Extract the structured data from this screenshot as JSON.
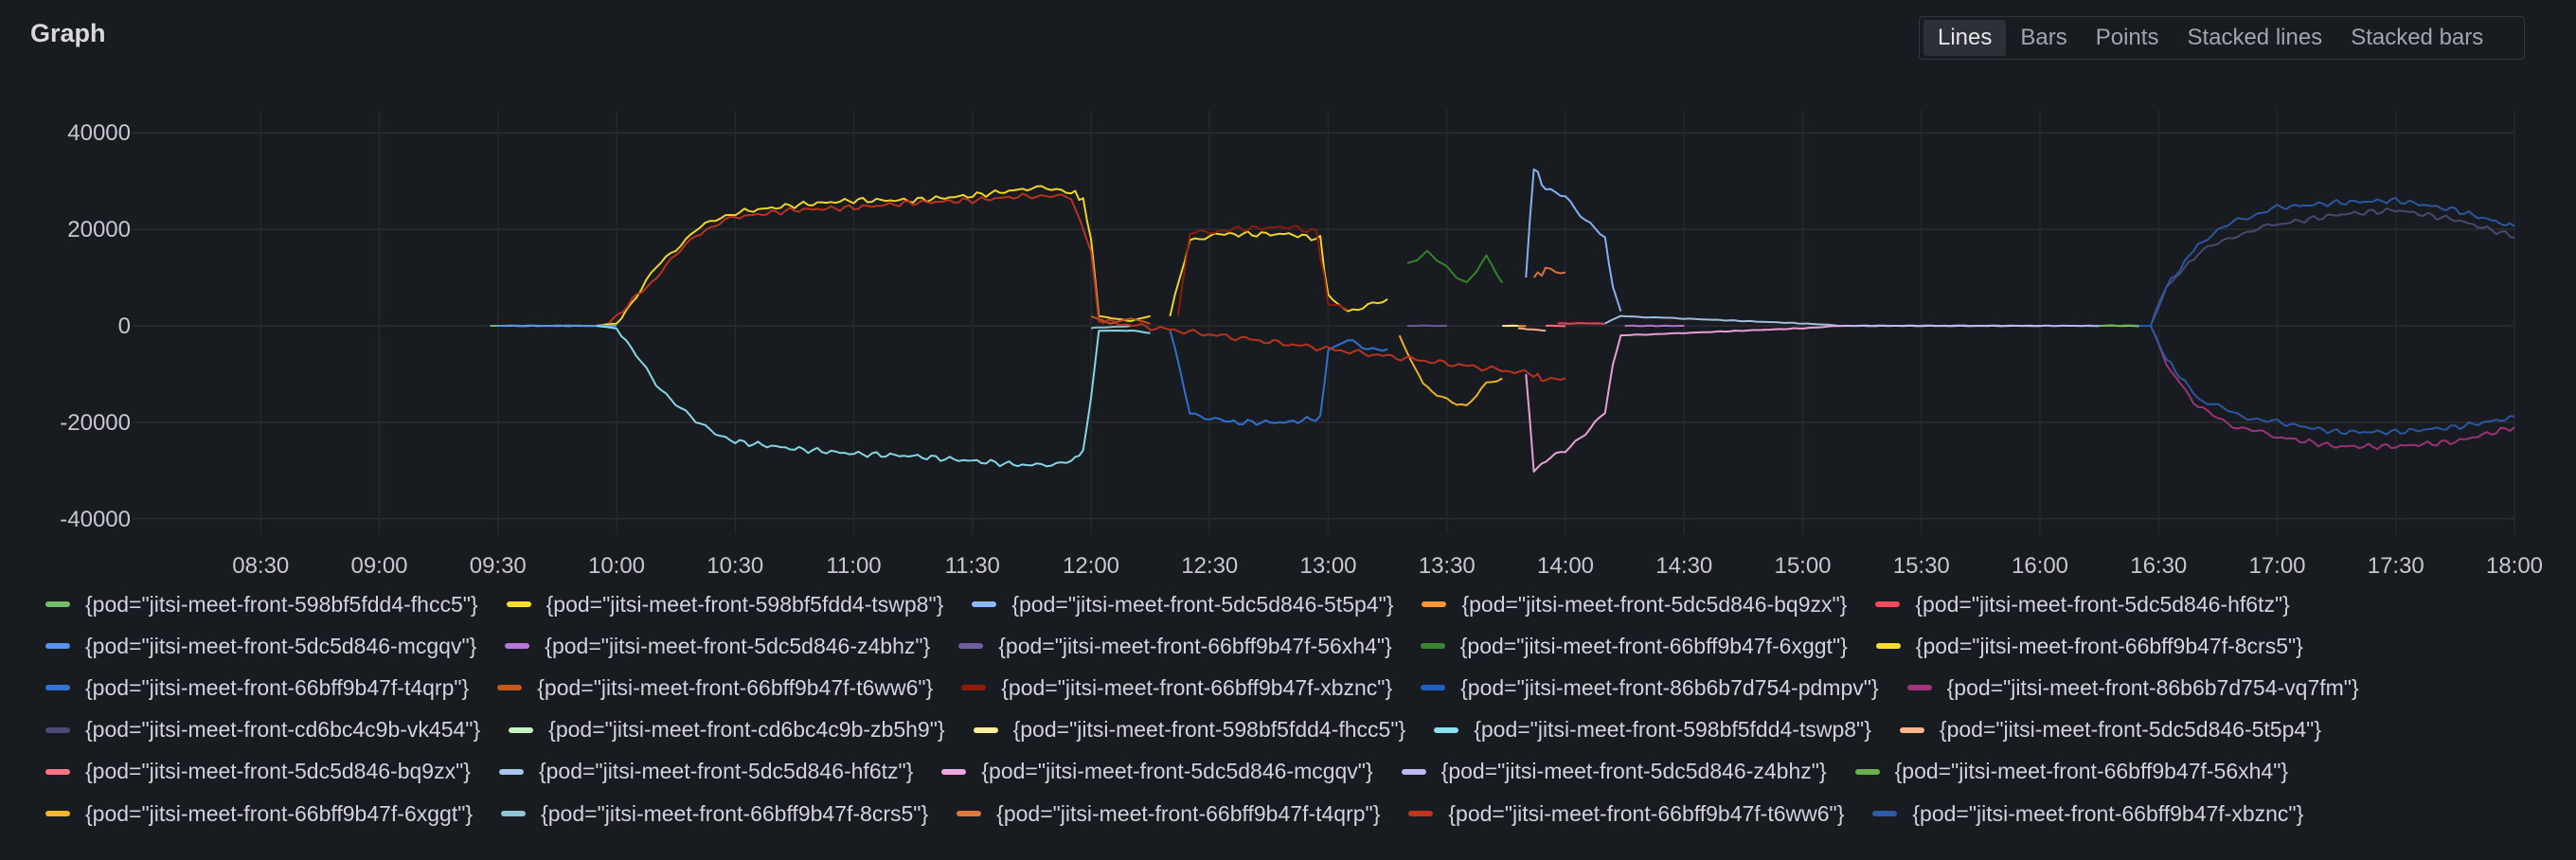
{
  "panel": {
    "title": "Graph",
    "viz_options": [
      {
        "label": "Lines",
        "active": true
      },
      {
        "label": "Bars",
        "active": false
      },
      {
        "label": "Points",
        "active": false
      },
      {
        "label": "Stacked lines",
        "active": false
      },
      {
        "label": "Stacked bars",
        "active": false
      }
    ]
  },
  "chart_data": {
    "type": "line",
    "title": "",
    "xlabel": "",
    "ylabel": "",
    "x_ticks": [
      "08:30",
      "09:00",
      "09:30",
      "10:00",
      "10:30",
      "11:00",
      "11:30",
      "12:00",
      "12:30",
      "13:00",
      "13:30",
      "14:00",
      "14:30",
      "15:00",
      "15:30",
      "16:00",
      "16:30",
      "17:00",
      "17:30",
      "18:00"
    ],
    "y_ticks": [
      40000,
      20000,
      0,
      -20000,
      -40000
    ],
    "y_tick_labels": [
      "40000",
      "20000",
      "0",
      "-20000",
      "-40000"
    ],
    "xlim": [
      "08:00",
      "18:00"
    ],
    "ylim": [
      -42000,
      42000
    ],
    "grid": true,
    "legend_position": "bottom",
    "series": [
      {
        "name": "{pod=\"jitsi-meet-front-598bf5fdd4-fhcc5\"}",
        "color": "#73bf69",
        "points": [
          [
            "09:28",
            0
          ],
          [
            "10:00",
            0
          ]
        ]
      },
      {
        "name": "{pod=\"jitsi-meet-front-598bf5fdd4-tswp8\"}",
        "color": "#fade2a",
        "points": [
          [
            "09:55",
            0
          ],
          [
            "10:00",
            500
          ],
          [
            "10:10",
            12000
          ],
          [
            "10:20",
            20000
          ],
          [
            "10:30",
            23500
          ],
          [
            "10:45",
            25000
          ],
          [
            "11:00",
            26000
          ],
          [
            "11:15",
            26000
          ],
          [
            "11:30",
            27000
          ],
          [
            "11:45",
            28500
          ],
          [
            "11:55",
            28000
          ],
          [
            "11:58",
            26000
          ],
          [
            "12:00",
            18000
          ],
          [
            "12:02",
            2000
          ],
          [
            "12:10",
            1000
          ],
          [
            "12:15",
            2000
          ]
        ]
      },
      {
        "name": "{pod=\"jitsi-meet-front-5dc5d846-5t5p4\"}",
        "color": "#8ab8ff",
        "points": [
          [
            "13:50",
            10000
          ],
          [
            "13:52",
            33000
          ],
          [
            "13:55",
            28000
          ],
          [
            "14:00",
            27000
          ],
          [
            "14:05",
            22000
          ],
          [
            "14:10",
            18000
          ],
          [
            "14:12",
            8000
          ],
          [
            "14:14",
            3000
          ]
        ]
      },
      {
        "name": "{pod=\"jitsi-meet-front-5dc5d846-bq9zx\"}",
        "color": "#ff9830",
        "points": [
          [
            "13:45",
            0
          ],
          [
            "13:50",
            0
          ]
        ]
      },
      {
        "name": "{pod=\"jitsi-meet-front-5dc5d846-hf6tz\"}",
        "color": "#f2495c",
        "points": [
          [
            "13:58",
            500
          ],
          [
            "14:10",
            500
          ]
        ]
      },
      {
        "name": "{pod=\"jitsi-meet-front-5dc5d846-mcgqv\"}",
        "color": "#5794f2",
        "points": [
          [
            "09:30",
            0
          ],
          [
            "10:00",
            0
          ]
        ]
      },
      {
        "name": "{pod=\"jitsi-meet-front-5dc5d846-z4bhz\"}",
        "color": "#b877d9",
        "points": [
          [
            "14:15",
            0
          ],
          [
            "14:30",
            0
          ]
        ]
      },
      {
        "name": "{pod=\"jitsi-meet-front-66bff9b47f-56xh4\"}",
        "color": "#705da0",
        "points": [
          [
            "13:20",
            0
          ],
          [
            "13:30",
            0
          ]
        ]
      },
      {
        "name": "{pod=\"jitsi-meet-front-66bff9b47f-6xggt\"}",
        "color": "#37872d",
        "points": [
          [
            "13:20",
            13000
          ],
          [
            "13:25",
            15000
          ],
          [
            "13:30",
            12000
          ],
          [
            "13:35",
            9000
          ],
          [
            "13:40",
            14000
          ],
          [
            "13:44",
            9000
          ]
        ]
      },
      {
        "name": "{pod=\"jitsi-meet-front-66bff9b47f-8crs5\"}",
        "color": "#fade2a",
        "points": [
          [
            "12:20",
            2000
          ],
          [
            "12:25",
            18000
          ],
          [
            "12:35",
            19000
          ],
          [
            "12:50",
            19000
          ],
          [
            "12:58",
            18000
          ],
          [
            "13:00",
            6000
          ],
          [
            "13:05",
            3000
          ],
          [
            "13:10",
            4500
          ],
          [
            "13:15",
            5000
          ]
        ]
      },
      {
        "name": "{pod=\"jitsi-meet-front-66bff9b47f-t4qrp\"}",
        "color": "#3274d9",
        "points": [
          [
            "12:20",
            -1000
          ],
          [
            "12:25",
            -18000
          ],
          [
            "12:35",
            -20000
          ],
          [
            "12:50",
            -20000
          ],
          [
            "12:58",
            -19000
          ],
          [
            "13:00",
            -5000
          ],
          [
            "13:05",
            -3000
          ],
          [
            "13:10",
            -4500
          ],
          [
            "13:15",
            -5000
          ]
        ]
      },
      {
        "name": "{pod=\"jitsi-meet-front-66bff9b47f-t6ww6\"}",
        "color": "#c4581d",
        "points": [
          [
            "12:00",
            2000
          ],
          [
            "12:05",
            500
          ],
          [
            "12:10",
            1500
          ],
          [
            "12:15",
            500
          ]
        ]
      },
      {
        "name": "{pod=\"jitsi-meet-front-66bff9b47f-xbznc\"}",
        "color": "#8f1c0a",
        "points": [
          [
            "12:22",
            2000
          ],
          [
            "12:25",
            19000
          ],
          [
            "12:35",
            20000
          ],
          [
            "12:50",
            20500
          ],
          [
            "12:57",
            19500
          ],
          [
            "13:00",
            5000
          ],
          [
            "13:05",
            3500
          ]
        ]
      },
      {
        "name": "{pod=\"jitsi-meet-front-86b6b7d754-pdmpv\"}",
        "color": "#1f60c4",
        "points": [
          [
            "16:00",
            0
          ],
          [
            "16:28",
            0
          ]
        ]
      },
      {
        "name": "{pod=\"jitsi-meet-front-86b6b7d754-vq7fm\"}",
        "color": "#a0357a",
        "points": [
          [
            "16:28",
            0
          ],
          [
            "16:32",
            -8000
          ],
          [
            "16:40",
            -17000
          ],
          [
            "16:50",
            -21000
          ],
          [
            "17:00",
            -23000
          ],
          [
            "17:15",
            -25000
          ],
          [
            "17:30",
            -25000
          ],
          [
            "17:45",
            -24000
          ],
          [
            "18:00",
            -21000
          ]
        ]
      },
      {
        "name": "{pod=\"jitsi-meet-front-cd6bc4c9b-vk454\"}",
        "color": "#4e4a77",
        "points": [
          [
            "16:28",
            0
          ],
          [
            "16:32",
            8000
          ],
          [
            "16:40",
            15000
          ],
          [
            "16:50",
            19000
          ],
          [
            "17:00",
            21000
          ],
          [
            "17:15",
            23000
          ],
          [
            "17:30",
            24000
          ],
          [
            "17:45",
            22000
          ],
          [
            "18:00",
            18500
          ]
        ]
      },
      {
        "name": "{pod=\"jitsi-meet-front-cd6bc4c9b-zb5h9\"}",
        "color": "#c8f2c2",
        "points": [
          [
            "16:15",
            0
          ],
          [
            "16:25",
            0
          ]
        ]
      },
      {
        "name": "{pod=\"jitsi-meet-front-598bf5fdd4-fhcc5\"}",
        "color": "#ffee99",
        "points": [
          [
            "13:44",
            0
          ],
          [
            "13:48",
            0
          ]
        ]
      },
      {
        "name": "{pod=\"jitsi-meet-front-598bf5fdd4-tswp8\"}",
        "color": "#8ae0f0",
        "points": [
          [
            "09:55",
            0
          ],
          [
            "10:00",
            -500
          ],
          [
            "10:10",
            -12000
          ],
          [
            "10:20",
            -20000
          ],
          [
            "10:30",
            -24000
          ],
          [
            "10:45",
            -25500
          ],
          [
            "11:00",
            -26500
          ],
          [
            "11:15",
            -27000
          ],
          [
            "11:30",
            -28000
          ],
          [
            "11:45",
            -29000
          ],
          [
            "11:55",
            -28000
          ],
          [
            "11:58",
            -26000
          ],
          [
            "12:00",
            -15000
          ],
          [
            "12:02",
            -1000
          ],
          [
            "12:10",
            -1000
          ],
          [
            "12:15",
            -1500
          ]
        ]
      },
      {
        "name": "{pod=\"jitsi-meet-front-5dc5d846-5t5p4\"}",
        "color": "#ffb68a",
        "points": [
          [
            "13:48",
            -500
          ],
          [
            "13:55",
            -1000
          ]
        ]
      },
      {
        "name": "{pod=\"jitsi-meet-front-5dc5d846-bq9zx\"}",
        "color": "#ff7383",
        "points": [
          [
            "13:55",
            0
          ],
          [
            "14:00",
            0
          ]
        ]
      },
      {
        "name": "{pod=\"jitsi-meet-front-5dc5d846-hf6tz\"}",
        "color": "#a6c5e8",
        "points": [
          [
            "14:10",
            500
          ],
          [
            "14:14",
            2000
          ],
          [
            "14:30",
            1500
          ],
          [
            "14:45",
            1000
          ],
          [
            "15:00",
            500
          ],
          [
            "15:10",
            0
          ],
          [
            "15:30",
            0
          ],
          [
            "16:00",
            0
          ]
        ]
      },
      {
        "name": "{pod=\"jitsi-meet-front-5dc5d846-mcgqv\"}",
        "color": "#f4a6e0",
        "points": [
          [
            "13:50",
            -10000
          ],
          [
            "13:52",
            -30000
          ],
          [
            "13:55",
            -28000
          ],
          [
            "14:00",
            -26000
          ],
          [
            "14:05",
            -22000
          ],
          [
            "14:10",
            -18000
          ],
          [
            "14:12",
            -8000
          ],
          [
            "14:14",
            -2000
          ],
          [
            "14:30",
            -1500
          ],
          [
            "14:45",
            -1000
          ],
          [
            "15:00",
            -500
          ],
          [
            "15:10",
            0
          ]
        ]
      },
      {
        "name": "{pod=\"jitsi-meet-front-5dc5d846-z4bhz\"}",
        "color": "#c0b8f0",
        "points": [
          [
            "15:10",
            0
          ],
          [
            "15:30",
            0
          ],
          [
            "16:00",
            0
          ],
          [
            "16:15",
            0
          ]
        ]
      },
      {
        "name": "{pod=\"jitsi-meet-front-66bff9b47f-56xh4\"}",
        "color": "#6bb04f",
        "points": [
          [
            "16:15",
            0
          ],
          [
            "16:25",
            0
          ]
        ]
      },
      {
        "name": "{pod=\"jitsi-meet-front-66bff9b47f-6xggt\"}",
        "color": "#f3b62c",
        "points": [
          [
            "13:18",
            -2000
          ],
          [
            "13:22",
            -9000
          ],
          [
            "13:25",
            -13000
          ],
          [
            "13:30",
            -15000
          ],
          [
            "13:35",
            -17000
          ],
          [
            "13:40",
            -12000
          ],
          [
            "13:44",
            -11000
          ]
        ]
      },
      {
        "name": "{pod=\"jitsi-meet-front-66bff9b47f-8crs5\"}",
        "color": "#8fc3d8",
        "points": [
          [
            "12:00",
            -500
          ],
          [
            "12:10",
            0
          ]
        ]
      },
      {
        "name": "{pod=\"jitsi-meet-front-66bff9b47f-t4qrp\"}",
        "color": "#e07840",
        "points": [
          [
            "13:52",
            10000
          ],
          [
            "13:55",
            11500
          ],
          [
            "14:00",
            11000
          ]
        ]
      },
      {
        "name": "{pod=\"jitsi-meet-front-66bff9b47f-t6ww6\"}",
        "color": "#c13420",
        "points": [
          [
            "09:58",
            500
          ],
          [
            "10:10",
            10000
          ],
          [
            "10:20",
            19000
          ],
          [
            "10:30",
            22500
          ],
          [
            "10:45",
            24000
          ],
          [
            "11:00",
            24500
          ],
          [
            "11:15",
            25500
          ],
          [
            "11:30",
            26000
          ],
          [
            "11:45",
            27000
          ],
          [
            "11:55",
            26500
          ],
          [
            "12:00",
            16000
          ],
          [
            "12:02",
            1000
          ],
          [
            "13:52",
            -10000
          ],
          [
            "13:55",
            -11500
          ],
          [
            "14:00",
            -11000
          ]
        ]
      },
      {
        "name": "{pod=\"jitsi-meet-front-66bff9b47f-xbznc\"}",
        "color": "#2c5aa8",
        "points": [
          [
            "16:28",
            0
          ],
          [
            "16:32",
            8000
          ],
          [
            "16:40",
            17000
          ],
          [
            "16:50",
            22000
          ],
          [
            "17:00",
            24500
          ],
          [
            "17:15",
            25500
          ],
          [
            "17:30",
            26000
          ],
          [
            "17:45",
            24000
          ],
          [
            "18:00",
            20500
          ],
          [
            "16:28",
            0
          ],
          [
            "16:32",
            -7000
          ],
          [
            "16:40",
            -15000
          ],
          [
            "16:50",
            -18500
          ],
          [
            "17:00",
            -20000
          ],
          [
            "17:15",
            -22000
          ],
          [
            "17:30",
            -22000
          ],
          [
            "17:45",
            -21000
          ],
          [
            "18:00",
            -19000
          ]
        ]
      }
    ]
  }
}
